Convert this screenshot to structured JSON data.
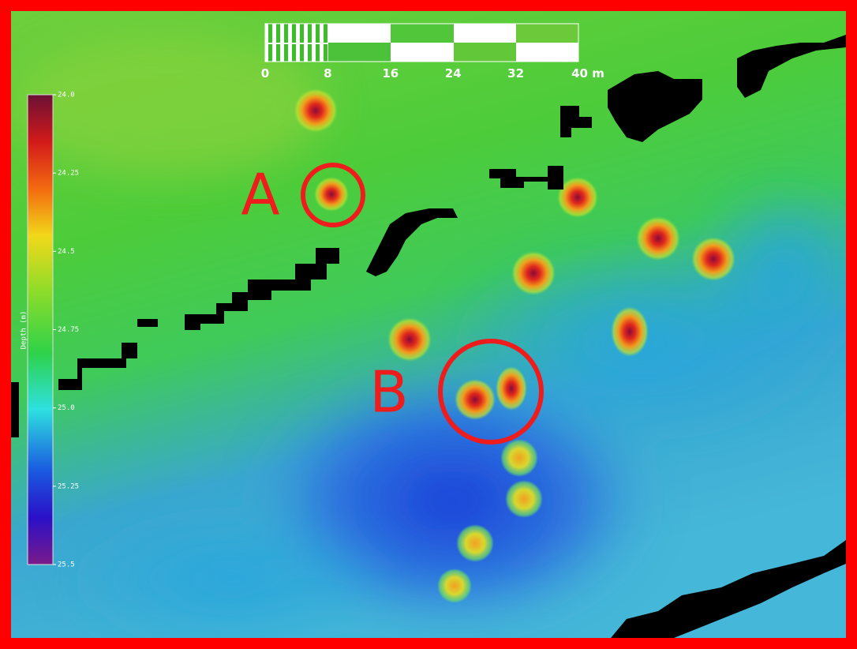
{
  "map": {
    "scale_bar": {
      "labels": [
        "0",
        "8",
        "16",
        "24",
        "32",
        "40 m"
      ]
    },
    "colorbar": {
      "title": "Depth (m)",
      "ticks": [
        "24.0",
        "24.25",
        "24.5",
        "24.75",
        "25.0",
        "25.25",
        "25.5"
      ]
    },
    "annotations": [
      "A",
      "B"
    ]
  }
}
